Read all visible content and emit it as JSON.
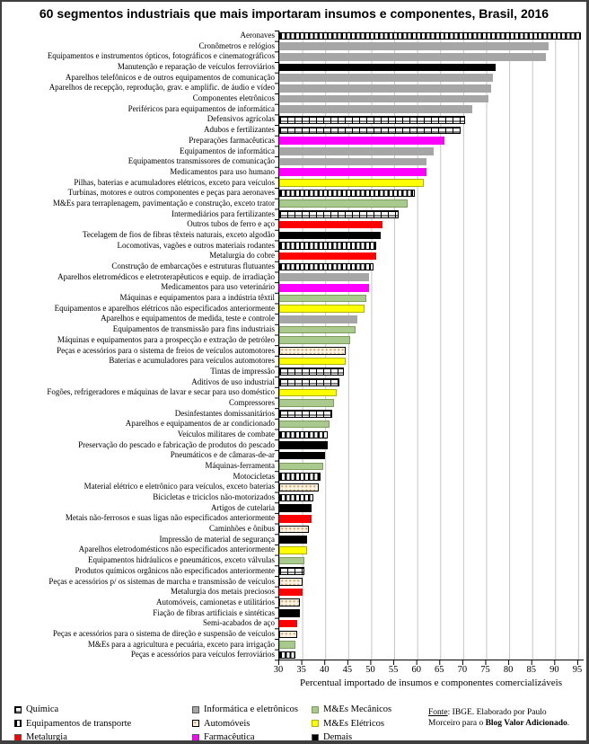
{
  "title": "60 segmentos industriais que mais importaram insumos e componentes, Brasil, 2016",
  "chart_data": {
    "type": "bar",
    "orientation": "horizontal",
    "title": "60 segmentos industriais que mais importaram insumos e componentes, Brasil, 2016",
    "xlabel": "Percentual importado de insumos e componentes comercializáveis",
    "xlim": [
      30,
      95
    ],
    "xticks": [
      30,
      35,
      40,
      45,
      50,
      55,
      60,
      65,
      70,
      75,
      80,
      85,
      90,
      95
    ],
    "grid": true,
    "legend_position": "bottom",
    "bars": [
      {
        "label": "Aeronaves",
        "value": 95.5,
        "sector": "transporte"
      },
      {
        "label": "Cronômetros e relógios",
        "value": 88.5,
        "sector": "informatica"
      },
      {
        "label": "Equipamentos e instrumentos ópticos, fotográficos e cinematográficos",
        "value": 88,
        "sector": "informatica"
      },
      {
        "label": "Manutenção e reparação de veículos ferroviários",
        "value": 77,
        "sector": "demais"
      },
      {
        "label": "Aparelhos telefônicos e de outros equipamentos de comunicação",
        "value": 76.5,
        "sector": "informatica"
      },
      {
        "label": "Aparelhos de recepção, reprodução, grav. e amplific. de áudio e vídeo",
        "value": 76,
        "sector": "informatica"
      },
      {
        "label": "Componentes eletrônicos",
        "value": 75.5,
        "sector": "informatica"
      },
      {
        "label": "Periféricos para equipamentos de informática",
        "value": 72,
        "sector": "informatica"
      },
      {
        "label": "Defensivos agrícolas",
        "value": 70.5,
        "sector": "quimica"
      },
      {
        "label": "Adubos e fertilizantes",
        "value": 69.5,
        "sector": "quimica"
      },
      {
        "label": "Preparações farmacêuticas",
        "value": 66,
        "sector": "farmaceutica"
      },
      {
        "label": "Equipamentos de informática",
        "value": 63.5,
        "sector": "informatica"
      },
      {
        "label": "Equipamentos transmissores de comunicação",
        "value": 62,
        "sector": "informatica"
      },
      {
        "label": "Medicamentos para uso humano",
        "value": 62,
        "sector": "farmaceutica"
      },
      {
        "label": "Pilhas, baterias e acumuladores elétricos, exceto para veículos",
        "value": 61.5,
        "sector": "eletricos"
      },
      {
        "label": "Turbinas, motores e outros componentes e peças para aeronaves",
        "value": 59.5,
        "sector": "transporte"
      },
      {
        "label": "M&Es para terraplenagem, pavimentação e construção, exceto trator",
        "value": 58,
        "sector": "mecanicos"
      },
      {
        "label": "Intermediários para fertilizantes",
        "value": 56,
        "sector": "quimica"
      },
      {
        "label": "Outros tubos de ferro e aço",
        "value": 52.5,
        "sector": "metalurgia"
      },
      {
        "label": "Tecelagem de fios de fibras têxteis naturais, exceto algodão",
        "value": 52,
        "sector": "demais"
      },
      {
        "label": "Locomotivas, vagões e outros materiais rodantes",
        "value": 51,
        "sector": "transporte"
      },
      {
        "label": "Metalurgia do cobre",
        "value": 51,
        "sector": "metalurgia"
      },
      {
        "label": "Construção de embarcações e estruturas flutuantes",
        "value": 50.5,
        "sector": "transporte"
      },
      {
        "label": "Aparelhos eletromédicos e eletroterapêuticos e equip. de irradiação",
        "value": 49.5,
        "sector": "informatica"
      },
      {
        "label": "Medicamentos para uso veterinário",
        "value": 49.5,
        "sector": "farmaceutica"
      },
      {
        "label": "Máquinas e equipamentos para a indústria têxtil",
        "value": 49,
        "sector": "mecanicos"
      },
      {
        "label": "Equipamentos e aparelhos elétricos não especificados anteriormente",
        "value": 48.5,
        "sector": "eletricos"
      },
      {
        "label": "Aparelhos e equipamentos de medida, teste e controle",
        "value": 47,
        "sector": "informatica"
      },
      {
        "label": "Equipamentos de transmissão para fins industriais",
        "value": 46.5,
        "sector": "mecanicos"
      },
      {
        "label": "Máquinas e equipamentos para a prospecção e extração de petróleo",
        "value": 45.5,
        "sector": "mecanicos"
      },
      {
        "label": "Peças e acessórios para o sistema de freios de veículos automotores",
        "value": 44.5,
        "sector": "automoveis"
      },
      {
        "label": "Baterias e acumuladores para veículos automotores",
        "value": 44.5,
        "sector": "eletricos"
      },
      {
        "label": "Tintas de impressão",
        "value": 44,
        "sector": "quimica"
      },
      {
        "label": "Aditivos de uso industrial",
        "value": 43,
        "sector": "quimica"
      },
      {
        "label": "Fogões, refrigeradores e máquinas de lavar e secar para uso doméstico",
        "value": 42.5,
        "sector": "eletricos"
      },
      {
        "label": "Compressores",
        "value": 42,
        "sector": "mecanicos"
      },
      {
        "label": "Desinfestantes domissanitários",
        "value": 41.5,
        "sector": "quimica"
      },
      {
        "label": "Aparelhos e equipamentos de ar condicionado",
        "value": 41,
        "sector": "mecanicos"
      },
      {
        "label": "Veículos militares de combate",
        "value": 40.5,
        "sector": "transporte"
      },
      {
        "label": "Preservação do pescado e fabricação de produtos do pescado",
        "value": 40.5,
        "sector": "demais"
      },
      {
        "label": "Pneumáticos e de câmaras-de-ar",
        "value": 40,
        "sector": "demais"
      },
      {
        "label": "Máquinas-ferramenta",
        "value": 39.5,
        "sector": "mecanicos"
      },
      {
        "label": "Motocicletas",
        "value": 39,
        "sector": "transporte"
      },
      {
        "label": "Material elétrico e eletrônico para veículos, exceto baterias",
        "value": 38.5,
        "sector": "automoveis"
      },
      {
        "label": "Bicicletas e triciclos não-motorizados",
        "value": 37.5,
        "sector": "transporte"
      },
      {
        "label": "Artigos de cutelaria",
        "value": 37,
        "sector": "demais"
      },
      {
        "label": "Metais não-ferrosos e suas ligas não especificados anteriormente",
        "value": 37,
        "sector": "metalurgia"
      },
      {
        "label": "Caminhões e ônibus",
        "value": 36.5,
        "sector": "automoveis"
      },
      {
        "label": "Impressão de material de segurança",
        "value": 36,
        "sector": "demais"
      },
      {
        "label": "Aparelhos eletrodomésticos não especificados anteriormente",
        "value": 36,
        "sector": "eletricos"
      },
      {
        "label": "Equipamentos hidráulicos e pneumáticos, exceto válvulas",
        "value": 35.5,
        "sector": "mecanicos"
      },
      {
        "label": "Produtos químicos orgânicos não especificados anteriormente",
        "value": 35.5,
        "sector": "quimica"
      },
      {
        "label": "Peças e acessórios p/ os sistemas de marcha e transmissão de veículos",
        "value": 35,
        "sector": "automoveis"
      },
      {
        "label": "Metalurgia dos metais preciosos",
        "value": 35,
        "sector": "metalurgia"
      },
      {
        "label": "Automóveis, camionetas e utilitários",
        "value": 34.5,
        "sector": "automoveis"
      },
      {
        "label": "Fiação de fibras artificiais e sintéticas",
        "value": 34.5,
        "sector": "demais"
      },
      {
        "label": "Semi-acabados de aço",
        "value": 34,
        "sector": "metalurgia"
      },
      {
        "label": "Peças e acessórios para o sistema de direção e suspensão de veículos",
        "value": 34,
        "sector": "automoveis"
      },
      {
        "label": "M&Es para a agricultura e pecuária, exceto para irrigação",
        "value": 33.5,
        "sector": "mecanicos"
      },
      {
        "label": "Peças e acessórios para veículos ferroviários",
        "value": 33.5,
        "sector": "transporte"
      }
    ]
  },
  "sectors": {
    "quimica": {
      "label": "Química",
      "style": "brick",
      "color": "#FFFFFF"
    },
    "transporte": {
      "label": "Equipamentos de transporte",
      "style": "stripes",
      "color": "#000000"
    },
    "metalurgia": {
      "label": "Metalurgia",
      "style": "solid",
      "color": "#FF0000"
    },
    "informatica": {
      "label": "Informática e eletrônicos",
      "style": "solid",
      "color": "#A6A6A6"
    },
    "automoveis": {
      "label": "Automóveis",
      "style": "dots",
      "color": "#FBF3E4"
    },
    "farmaceutica": {
      "label": "Farmacêutica",
      "style": "solid",
      "color": "#FF00FF"
    },
    "mecanicos": {
      "label": "M&Es Mecânicos",
      "style": "solid",
      "color": "#A9C98E",
      "border": "#7A9E5A"
    },
    "eletricos": {
      "label": "M&Es Elétricos",
      "style": "solid",
      "color": "#FFFF00",
      "border": "#B0B000"
    },
    "demais": {
      "label": "Demais",
      "style": "solid",
      "color": "#000000"
    }
  },
  "legend": {
    "columns": [
      [
        "quimica",
        "transporte",
        "metalurgia"
      ],
      [
        "informatica",
        "automoveis",
        "farmaceutica"
      ],
      [
        "mecanicos",
        "eletricos",
        "demais"
      ]
    ]
  },
  "source": {
    "prefix": "Fonte",
    "middle": ": IBGE. Elaborado por Paulo Morceiro para o ",
    "bold": "Blog Valor Adicionado",
    "suffix": "."
  }
}
